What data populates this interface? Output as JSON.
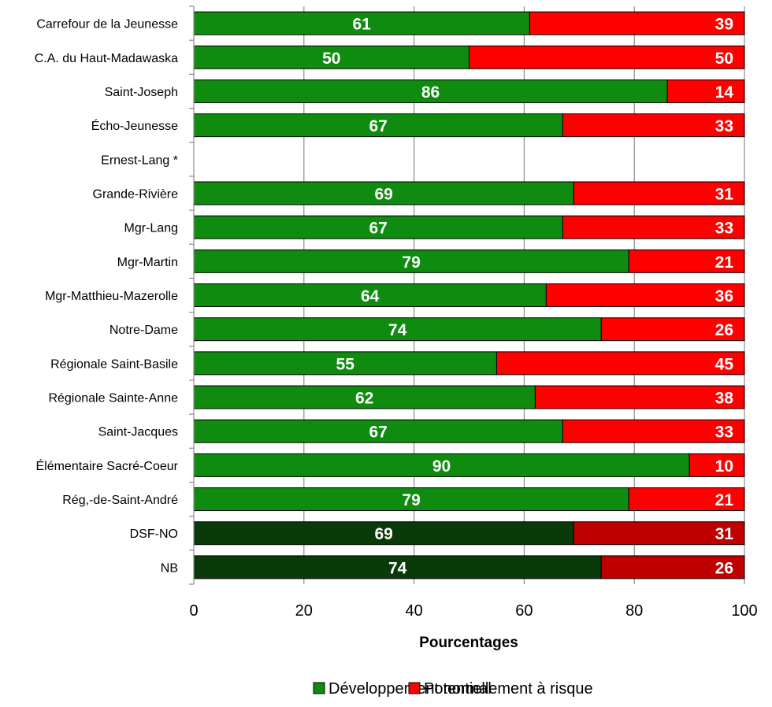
{
  "chart_data": {
    "type": "bar",
    "orientation": "horizontal",
    "stacked": true,
    "categories": [
      "Carrefour de la Jeunesse",
      "C.A. du Haut-Madawaska",
      "Saint-Joseph",
      "Écho-Jeunesse",
      "Ernest-Lang *",
      "Grande-Rivière",
      "Mgr-Lang",
      "Mgr-Martin",
      "Mgr-Matthieu-Mazerolle",
      "Notre-Dame",
      "Régionale Saint-Basile",
      "Régionale Sainte-Anne",
      "Saint-Jacques",
      "Élémentaire Sacré-Coeur",
      "Rég,-de-Saint-André",
      "DSF-NO",
      "NB"
    ],
    "series": [
      {
        "name": "Développement normal",
        "color": "#0f8c0f",
        "highlight_color": "#0a3a0a",
        "values": [
          61,
          50,
          86,
          67,
          null,
          69,
          67,
          79,
          64,
          74,
          55,
          62,
          67,
          90,
          79,
          69,
          74
        ]
      },
      {
        "name": "Potentiellement à risque",
        "color": "#ff0000",
        "highlight_color": "#c00000",
        "values": [
          39,
          50,
          14,
          33,
          null,
          31,
          33,
          21,
          36,
          26,
          45,
          38,
          33,
          10,
          21,
          31,
          26
        ]
      }
    ],
    "highlight_categories": [
      "DSF-NO",
      "NB"
    ],
    "xlabel": "Pourcentages",
    "xlim": [
      0,
      100
    ],
    "xticks": [
      0,
      20,
      40,
      60,
      80,
      100
    ],
    "grid": "vertical",
    "legend_position": "bottom",
    "data_labels": true
  }
}
